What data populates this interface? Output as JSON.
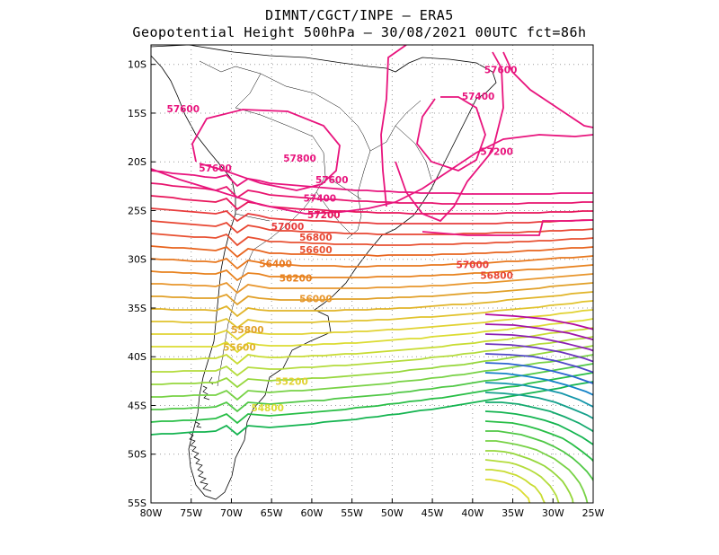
{
  "title": {
    "line1": "DIMNT/CGCT/INPE –  ERA5",
    "line2": "Geopotential Height 500hPa –  30/08/2021 00UTC fct=86h"
  },
  "map": {
    "lon_range": [
      -80,
      -25
    ],
    "lat_range": [
      -55,
      -8
    ],
    "x_ticks": [
      {
        "value": -80,
        "label": "80W"
      },
      {
        "value": -75,
        "label": "75W"
      },
      {
        "value": -70,
        "label": "70W"
      },
      {
        "value": -65,
        "label": "65W"
      },
      {
        "value": -60,
        "label": "60W"
      },
      {
        "value": -55,
        "label": "55W"
      },
      {
        "value": -50,
        "label": "50W"
      },
      {
        "value": -45,
        "label": "45W"
      },
      {
        "value": -40,
        "label": "40W"
      },
      {
        "value": -35,
        "label": "35W"
      },
      {
        "value": -30,
        "label": "30W"
      },
      {
        "value": -25,
        "label": "25W"
      }
    ],
    "y_ticks": [
      {
        "value": -10,
        "label": "10S"
      },
      {
        "value": -15,
        "label": "15S"
      },
      {
        "value": -20,
        "label": "20S"
      },
      {
        "value": -25,
        "label": "25S"
      },
      {
        "value": -30,
        "label": "30S"
      },
      {
        "value": -35,
        "label": "35S"
      },
      {
        "value": -40,
        "label": "40S"
      },
      {
        "value": -45,
        "label": "45S"
      },
      {
        "value": -50,
        "label": "50S"
      },
      {
        "value": -55,
        "label": "55S"
      }
    ],
    "grid": "dotted"
  },
  "contour_labels": [
    {
      "text": "57600",
      "lon": -36.5,
      "lat": -10.9,
      "color": "#e8147d"
    },
    {
      "text": "57400",
      "lon": -39.3,
      "lat": -13.6,
      "color": "#e8147d"
    },
    {
      "text": "57600",
      "lon": -76.0,
      "lat": -14.9,
      "color": "#e8147d"
    },
    {
      "text": "57200",
      "lon": -37.0,
      "lat": -19.3,
      "color": "#e8147d"
    },
    {
      "text": "57800",
      "lon": -61.5,
      "lat": -20.0,
      "color": "#e8147d"
    },
    {
      "text": "57600",
      "lon": -72.0,
      "lat": -21.0,
      "color": "#e8147d"
    },
    {
      "text": "57600",
      "lon": -57.5,
      "lat": -22.2,
      "color": "#e8147d"
    },
    {
      "text": "57400",
      "lon": -59.0,
      "lat": -24.1,
      "color": "#e8147d"
    },
    {
      "text": "57200",
      "lon": -58.5,
      "lat": -25.8,
      "color": "#e8145a"
    },
    {
      "text": "57000",
      "lon": -63.0,
      "lat": -27.0,
      "color": "#e83c3c"
    },
    {
      "text": "56800",
      "lon": -59.5,
      "lat": -28.1,
      "color": "#e84632"
    },
    {
      "text": "56600",
      "lon": -59.5,
      "lat": -29.4,
      "color": "#e85032"
    },
    {
      "text": "57000",
      "lon": -40.0,
      "lat": -30.9,
      "color": "#e83c3c"
    },
    {
      "text": "56400",
      "lon": -64.5,
      "lat": -30.8,
      "color": "#e8781e"
    },
    {
      "text": "56800",
      "lon": -37.0,
      "lat": -32.0,
      "color": "#e84632"
    },
    {
      "text": "56200",
      "lon": -62.0,
      "lat": -32.3,
      "color": "#e8821e"
    },
    {
      "text": "56000",
      "lon": -59.5,
      "lat": -34.4,
      "color": "#e8962d"
    },
    {
      "text": "55800",
      "lon": -68.0,
      "lat": -37.6,
      "color": "#e1a028"
    },
    {
      "text": "55600",
      "lon": -69.0,
      "lat": -39.4,
      "color": "#e1b428"
    },
    {
      "text": "55200",
      "lon": -62.5,
      "lat": -42.9,
      "color": "#e1d232"
    },
    {
      "text": "54800",
      "lon": -65.5,
      "lat": -45.6,
      "color": "#dcdc32"
    }
  ],
  "colors": {
    "coast": "#000000",
    "grid": "#999999"
  }
}
